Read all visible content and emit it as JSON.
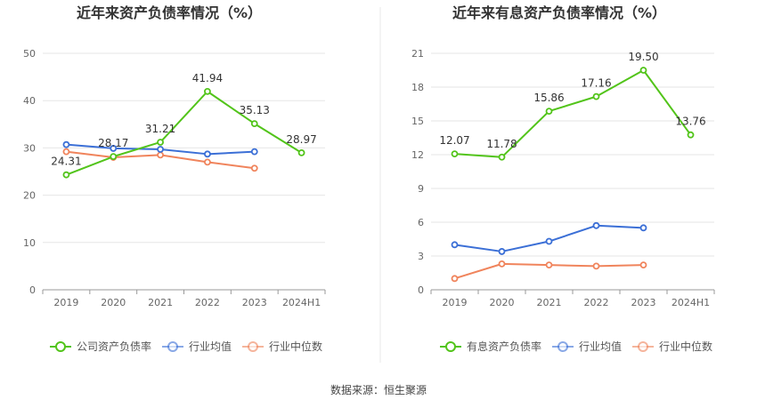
{
  "colors": {
    "company": "#52c41a",
    "avg": "#3b6fd6",
    "median": "#f0845c",
    "grid": "#e6e6e6",
    "axis": "#999999",
    "divider": "#e8e8e8"
  },
  "source": "数据来源：恒生聚源",
  "chart_data": [
    {
      "type": "line",
      "title": "近年来资产负债率情况（%）",
      "categories": [
        "2019",
        "2020",
        "2021",
        "2022",
        "2023",
        "2024H1"
      ],
      "ylim": [
        0,
        50
      ],
      "yticks": [
        0,
        10,
        20,
        30,
        40,
        50
      ],
      "grid": true,
      "legend": "bottom",
      "series": [
        {
          "name": "公司资产负债率",
          "color_key": "company",
          "values": [
            24.31,
            28.17,
            31.21,
            41.94,
            35.13,
            28.97
          ],
          "labels": [
            "24.31",
            "28.17",
            "31.21",
            "41.94",
            "35.13",
            "28.97"
          ]
        },
        {
          "name": "行业均值",
          "color_key": "avg",
          "values": [
            30.7,
            29.9,
            29.7,
            28.7,
            29.2,
            null
          ]
        },
        {
          "name": "行业中位数",
          "color_key": "median",
          "values": [
            29.2,
            28.0,
            28.5,
            27.0,
            25.7,
            null
          ]
        }
      ]
    },
    {
      "type": "line",
      "title": "近年来有息资产负债率情况（%）",
      "categories": [
        "2019",
        "2020",
        "2021",
        "2022",
        "2023",
        "2024H1"
      ],
      "ylim": [
        0,
        21
      ],
      "yticks": [
        0,
        3,
        6,
        9,
        12,
        15,
        18,
        21
      ],
      "grid": true,
      "legend": "bottom",
      "series": [
        {
          "name": "有息资产负债率",
          "color_key": "company",
          "values": [
            12.07,
            11.78,
            15.86,
            17.16,
            19.5,
            13.76
          ],
          "labels": [
            "12.07",
            "11.78",
            "15.86",
            "17.16",
            "19.50",
            "13.76"
          ]
        },
        {
          "name": "行业均值",
          "color_key": "avg",
          "values": [
            4.0,
            3.4,
            4.3,
            5.7,
            5.5,
            null
          ]
        },
        {
          "name": "行业中位数",
          "color_key": "median",
          "values": [
            1.0,
            2.3,
            2.2,
            2.1,
            2.2,
            null
          ]
        }
      ]
    }
  ]
}
